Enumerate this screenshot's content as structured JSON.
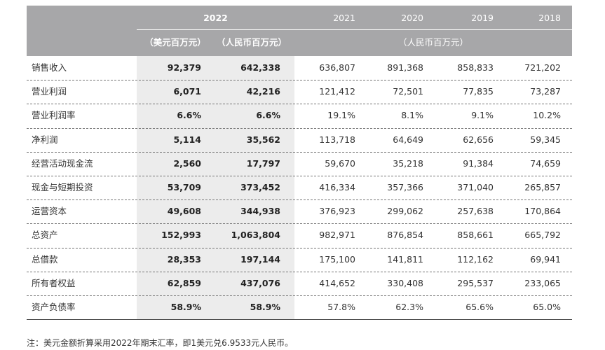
{
  "header": {
    "year_2022": "2022",
    "usd_unit": "（美元百万元）",
    "rmb_unit": "（人民币百万元）",
    "years": [
      "2021",
      "2020",
      "2019",
      "2018"
    ],
    "rmb_unit_prior": "（人民币百万元）"
  },
  "table": {
    "rows": [
      [
        "销售收入",
        "92,379",
        "642,338",
        "636,807",
        "891,368",
        "858,833",
        "721,202"
      ],
      [
        "营业利润",
        "6,071",
        "42,216",
        "121,412",
        "72,501",
        "77,835",
        "73,287"
      ],
      [
        "营业利润率",
        "6.6%",
        "6.6%",
        "19.1%",
        "8.1%",
        "9.1%",
        "10.2%"
      ],
      [
        "净利润",
        "5,114",
        "35,562",
        "113,718",
        "64,649",
        "62,656",
        "59,345"
      ],
      [
        "经营活动现金流",
        "2,560",
        "17,797",
        "59,670",
        "35,218",
        "91,384",
        "74,659"
      ],
      [
        "现金与短期投资",
        "53,709",
        "373,452",
        "416,334",
        "357,366",
        "371,040",
        "265,857"
      ],
      [
        "运营资本",
        "49,608",
        "344,938",
        "376,923",
        "299,062",
        "257,638",
        "170,864"
      ],
      [
        "总资产",
        "152,993",
        "1,063,804",
        "982,971",
        "876,854",
        "858,661",
        "665,792"
      ],
      [
        "总借款",
        "28,353",
        "197,144",
        "175,100",
        "141,811",
        "112,162",
        "69,941"
      ],
      [
        "所有者权益",
        "62,859",
        "437,076",
        "414,652",
        "330,408",
        "295,537",
        "233,065"
      ],
      [
        "资产负债率",
        "58.9%",
        "58.9%",
        "57.8%",
        "62.3%",
        "65.6%",
        "65.0%"
      ]
    ]
  },
  "footnote": "注：美元金额折算采用2022年期末汇率，即1美元兑6.9533元人民币。"
}
